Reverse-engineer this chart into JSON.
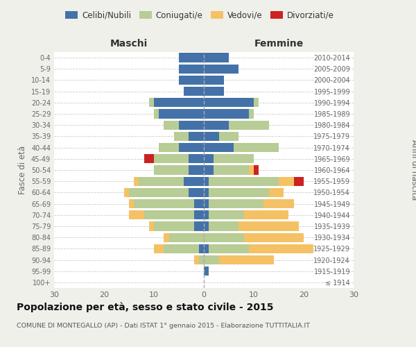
{
  "age_groups": [
    "0-4",
    "5-9",
    "10-14",
    "15-19",
    "20-24",
    "25-29",
    "30-34",
    "35-39",
    "40-44",
    "45-49",
    "50-54",
    "55-59",
    "60-64",
    "65-69",
    "70-74",
    "75-79",
    "80-84",
    "85-89",
    "90-94",
    "95-99",
    "100+"
  ],
  "birth_years": [
    "2010-2014",
    "2005-2009",
    "2000-2004",
    "1995-1999",
    "1990-1994",
    "1985-1989",
    "1980-1984",
    "1975-1979",
    "1970-1974",
    "1965-1969",
    "1960-1964",
    "1955-1959",
    "1950-1954",
    "1945-1949",
    "1940-1944",
    "1935-1939",
    "1930-1934",
    "1925-1929",
    "1920-1924",
    "1915-1919",
    "≤ 1914"
  ],
  "males": {
    "celibe": [
      5,
      5,
      5,
      4,
      10,
      9,
      5,
      3,
      5,
      3,
      3,
      4,
      3,
      2,
      2,
      2,
      0,
      1,
      0,
      0,
      0
    ],
    "coniugato": [
      0,
      0,
      0,
      0,
      1,
      1,
      3,
      3,
      4,
      7,
      7,
      9,
      12,
      12,
      10,
      8,
      7,
      7,
      1,
      0,
      0
    ],
    "vedovo": [
      0,
      0,
      0,
      0,
      0,
      0,
      0,
      0,
      0,
      0,
      0,
      1,
      1,
      1,
      3,
      1,
      1,
      2,
      1,
      0,
      0
    ],
    "divorziato": [
      0,
      0,
      0,
      0,
      0,
      0,
      0,
      0,
      0,
      2,
      0,
      0,
      0,
      0,
      0,
      0,
      0,
      0,
      0,
      0,
      0
    ]
  },
  "females": {
    "nubile": [
      5,
      7,
      4,
      4,
      10,
      9,
      5,
      3,
      6,
      2,
      2,
      1,
      1,
      1,
      1,
      1,
      0,
      1,
      0,
      1,
      0
    ],
    "coniugata": [
      0,
      0,
      0,
      0,
      1,
      1,
      8,
      4,
      9,
      8,
      7,
      14,
      12,
      11,
      7,
      6,
      8,
      8,
      3,
      0,
      0
    ],
    "vedova": [
      0,
      0,
      0,
      0,
      0,
      0,
      0,
      0,
      0,
      0,
      1,
      3,
      3,
      6,
      9,
      12,
      12,
      13,
      11,
      0,
      0
    ],
    "divorziata": [
      0,
      0,
      0,
      0,
      0,
      0,
      0,
      0,
      0,
      0,
      1,
      2,
      0,
      0,
      0,
      0,
      0,
      0,
      0,
      0,
      0
    ]
  },
  "colors": {
    "celibe_nubile": "#4472a8",
    "coniugato_coniugata": "#b8cc96",
    "vedovo_vedova": "#f5c165",
    "divorziato_divorziata": "#cc2222"
  },
  "xlim": 30,
  "title": "Popolazione per età, sesso e stato civile - 2015",
  "subtitle": "COMUNE DI MONTEGALLO (AP) - Dati ISTAT 1° gennaio 2015 - Elaborazione TUTTITALIA.IT",
  "ylabel_left": "Fasce di età",
  "ylabel_right": "Anni di nascita",
  "xlabel_left": "Maschi",
  "xlabel_right": "Femmine",
  "legend_labels": [
    "Celibi/Nubili",
    "Coniugati/e",
    "Vedovi/e",
    "Divorziati/e"
  ],
  "bg_color": "#f0f0eb",
  "plot_bg_color": "#ffffff"
}
